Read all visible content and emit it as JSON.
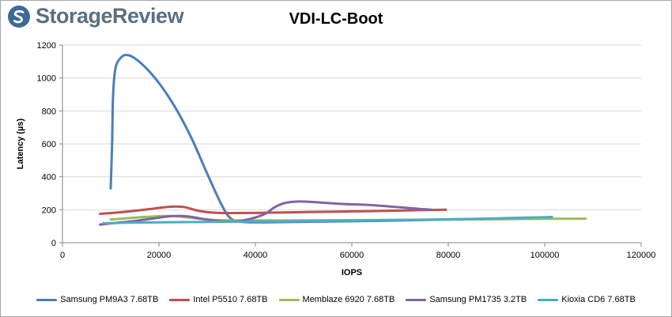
{
  "brand": {
    "name": "StorageReview",
    "icon": "storagereview-logo-icon",
    "color": "#5b6f80"
  },
  "chart_data": {
    "type": "line",
    "title": "VDI-LC-Boot",
    "xlabel": "IOPS",
    "ylabel": "Latency (µs)",
    "xlim": [
      0,
      120000
    ],
    "ylim": [
      0,
      1200
    ],
    "xticks": [
      0,
      20000,
      40000,
      60000,
      80000,
      100000,
      120000
    ],
    "yticks": [
      0,
      200,
      400,
      600,
      800,
      1000,
      1200
    ],
    "xtick_labels": [
      "0",
      "20000",
      "40000",
      "60000",
      "80000",
      "100000",
      "120000"
    ],
    "ytick_labels": [
      "0",
      "200",
      "400",
      "600",
      "800",
      "1000",
      "1200"
    ],
    "grid": "horizontal",
    "legend": "bottom",
    "series": [
      {
        "name": "Samsung PM9A3 7.68TB",
        "color": "#4a7ebb",
        "x": [
          10000,
          10300,
          10500,
          11000,
          12000,
          13200,
          15000,
          18000,
          21000,
          24000,
          27000,
          30000,
          33000,
          35000,
          38000,
          45000,
          60000,
          80000,
          100000
        ],
        "y": [
          330,
          600,
          900,
          1060,
          1120,
          1140,
          1120,
          1040,
          930,
          790,
          620,
          420,
          230,
          145,
          125,
          125,
          130,
          140,
          150
        ]
      },
      {
        "name": "Intel P5510 7.68TB",
        "color": "#c0504d",
        "x": [
          7800,
          12000,
          17000,
          21000,
          23500,
          25500,
          28000,
          31000,
          35000,
          42000,
          50000,
          60000,
          70000,
          75000,
          79500
        ],
        "y": [
          175,
          185,
          200,
          215,
          220,
          215,
          195,
          183,
          180,
          182,
          186,
          190,
          195,
          198,
          200
        ]
      },
      {
        "name": "Memblaze 6920 7.68TB",
        "color": "#9bbb59",
        "x": [
          10000,
          14000,
          18000,
          21000,
          24000,
          27000,
          30000,
          35000,
          45000,
          60000,
          80000,
          100000,
          108500
        ],
        "y": [
          140,
          150,
          158,
          162,
          160,
          150,
          140,
          135,
          135,
          137,
          140,
          145,
          146
        ]
      },
      {
        "name": "Samsung PM1735 3.2TB",
        "color": "#8064a2",
        "x": [
          7800,
          11000,
          15000,
          19000,
          23000,
          26000,
          29000,
          33000,
          36000,
          39000,
          42000,
          44000,
          46000,
          49000,
          53000,
          58000,
          63000,
          67000,
          71000,
          74000,
          76500
        ],
        "y": [
          110,
          120,
          132,
          148,
          162,
          160,
          145,
          130,
          130,
          145,
          175,
          215,
          240,
          250,
          245,
          235,
          230,
          222,
          212,
          205,
          200
        ]
      },
      {
        "name": "Kioxia CD6 7.68TB",
        "color": "#4bacc6",
        "x": [
          8500,
          14000,
          20000,
          30000,
          40000,
          50000,
          60000,
          70000,
          80000,
          90000,
          100000,
          101500
        ],
        "y": [
          118,
          122,
          124,
          126,
          128,
          131,
          134,
          138,
          142,
          148,
          155,
          157
        ]
      }
    ]
  }
}
